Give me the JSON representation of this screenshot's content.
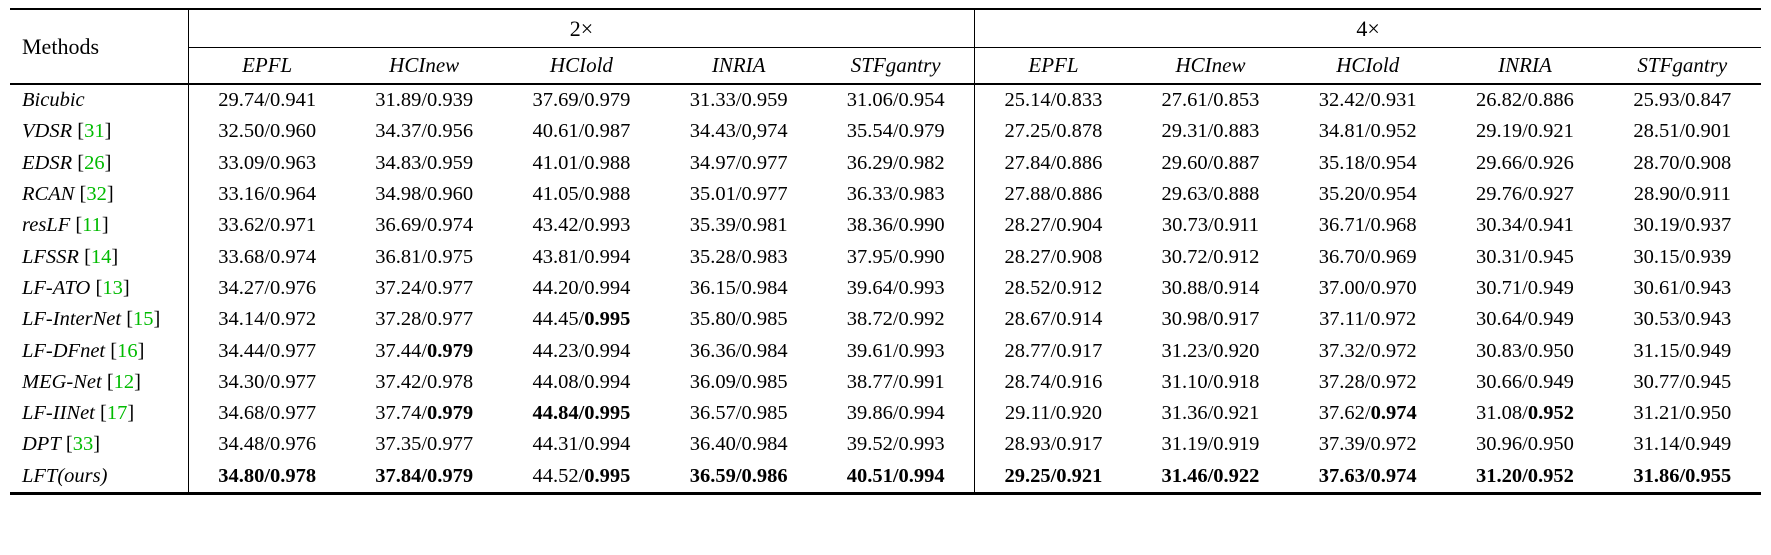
{
  "table": {
    "methods_header": "Methods",
    "group_headers": [
      {
        "label": "2×",
        "span": 5
      },
      {
        "label": "4×",
        "span": 5
      }
    ],
    "dataset_headers": [
      "EPFL",
      "HCInew",
      "HCIold",
      "INRIA",
      "STFgantry",
      "EPFL",
      "HCInew",
      "HCIold",
      "INRIA",
      "STFgantry"
    ],
    "citation_color": "#00bb00",
    "rows": [
      {
        "method": "Bicubic",
        "cite": "",
        "cells": [
          "29.74/0.941",
          "31.89/0.939",
          "37.69/0.979",
          "31.33/0.959",
          "31.06/0.954",
          "25.14/0.833",
          "27.61/0.853",
          "32.42/0.931",
          "26.82/0.886",
          "25.93/0.847"
        ]
      },
      {
        "method": "VDSR",
        "cite": "31",
        "cells": [
          "32.50/0.960",
          "34.37/0.956",
          "40.61/0.987",
          "34.43/0,974",
          "35.54/0.979",
          "27.25/0.878",
          "29.31/0.883",
          "34.81/0.952",
          "29.19/0.921",
          "28.51/0.901"
        ]
      },
      {
        "method": "EDSR",
        "cite": "26",
        "cells": [
          "33.09/0.963",
          "34.83/0.959",
          "41.01/0.988",
          "34.97/0.977",
          "36.29/0.982",
          "27.84/0.886",
          "29.60/0.887",
          "35.18/0.954",
          "29.66/0.926",
          "28.70/0.908"
        ]
      },
      {
        "method": "RCAN",
        "cite": "32",
        "cells": [
          "33.16/0.964",
          "34.98/0.960",
          "41.05/0.988",
          "35.01/0.977",
          "36.33/0.983",
          "27.88/0.886",
          "29.63/0.888",
          "35.20/0.954",
          "29.76/0.927",
          "28.90/0.911"
        ]
      },
      {
        "method": "resLF",
        "cite": "11",
        "cells": [
          "33.62/0.971",
          "36.69/0.974",
          "43.42/0.993",
          "35.39/0.981",
          "38.36/0.990",
          "28.27/0.904",
          "30.73/0.911",
          "36.71/0.968",
          "30.34/0.941",
          "30.19/0.937"
        ]
      },
      {
        "method": "LFSSR",
        "cite": "14",
        "cells": [
          "33.68/0.974",
          "36.81/0.975",
          "43.81/0.994",
          "35.28/0.983",
          "37.95/0.990",
          "28.27/0.908",
          "30.72/0.912",
          "36.70/0.969",
          "30.31/0.945",
          "30.15/0.939"
        ]
      },
      {
        "method": "LF-ATO",
        "cite": "13",
        "cells": [
          "34.27/0.976",
          "37.24/0.977",
          "44.20/0.994",
          "36.15/0.984",
          "39.64/0.993",
          "28.52/0.912",
          "30.88/0.914",
          "37.00/0.970",
          "30.71/0.949",
          "30.61/0.943"
        ]
      },
      {
        "method": "LF-InterNet",
        "cite": "15",
        "cells": [
          "34.14/0.972",
          "37.28/0.977",
          "44.45/*0.995*",
          "35.80/0.985",
          "38.72/0.992",
          "28.67/0.914",
          "30.98/0.917",
          "37.11/0.972",
          "30.64/0.949",
          "30.53/0.943"
        ]
      },
      {
        "method": "LF-DFnet",
        "cite": "16",
        "cells": [
          "34.44/0.977",
          "37.44/*0.979*",
          "44.23/0.994",
          "36.36/0.984",
          "39.61/0.993",
          "28.77/0.917",
          "31.23/0.920",
          "37.32/0.972",
          "30.83/0.950",
          "31.15/0.949"
        ]
      },
      {
        "method": "MEG-Net",
        "cite": "12",
        "cells": [
          "34.30/0.977",
          "37.42/0.978",
          "44.08/0.994",
          "36.09/0.985",
          "38.77/0.991",
          "28.74/0.916",
          "31.10/0.918",
          "37.28/0.972",
          "30.66/0.949",
          "30.77/0.945"
        ]
      },
      {
        "method": "LF-IINet",
        "cite": "17",
        "cells": [
          "34.68/0.977",
          "37.74/*0.979*",
          "*44.84/0.995*",
          "36.57/0.985",
          "39.86/0.994",
          "29.11/0.920",
          "31.36/0.921",
          "37.62/*0.974*",
          "31.08/*0.952*",
          "31.21/0.950"
        ]
      },
      {
        "method": "DPT",
        "cite": "33",
        "cells": [
          "34.48/0.976",
          "37.35/0.977",
          "44.31/0.994",
          "36.40/0.984",
          "39.52/0.993",
          "28.93/0.917",
          "31.19/0.919",
          "37.39/0.972",
          "30.96/0.950",
          "31.14/0.949"
        ]
      },
      {
        "method": "LFT(ours)",
        "cite": "",
        "cells": [
          "*34.80/0.978*",
          "*37.84/0.979*",
          "44.52/*0.995*",
          "*36.59/0.986*",
          "*40.51/0.994*",
          "*29.25/0.921*",
          "*31.46/0.922*",
          "*37.63/0.974*",
          "*31.20/0.952*",
          "*31.86/0.955*"
        ]
      }
    ]
  }
}
